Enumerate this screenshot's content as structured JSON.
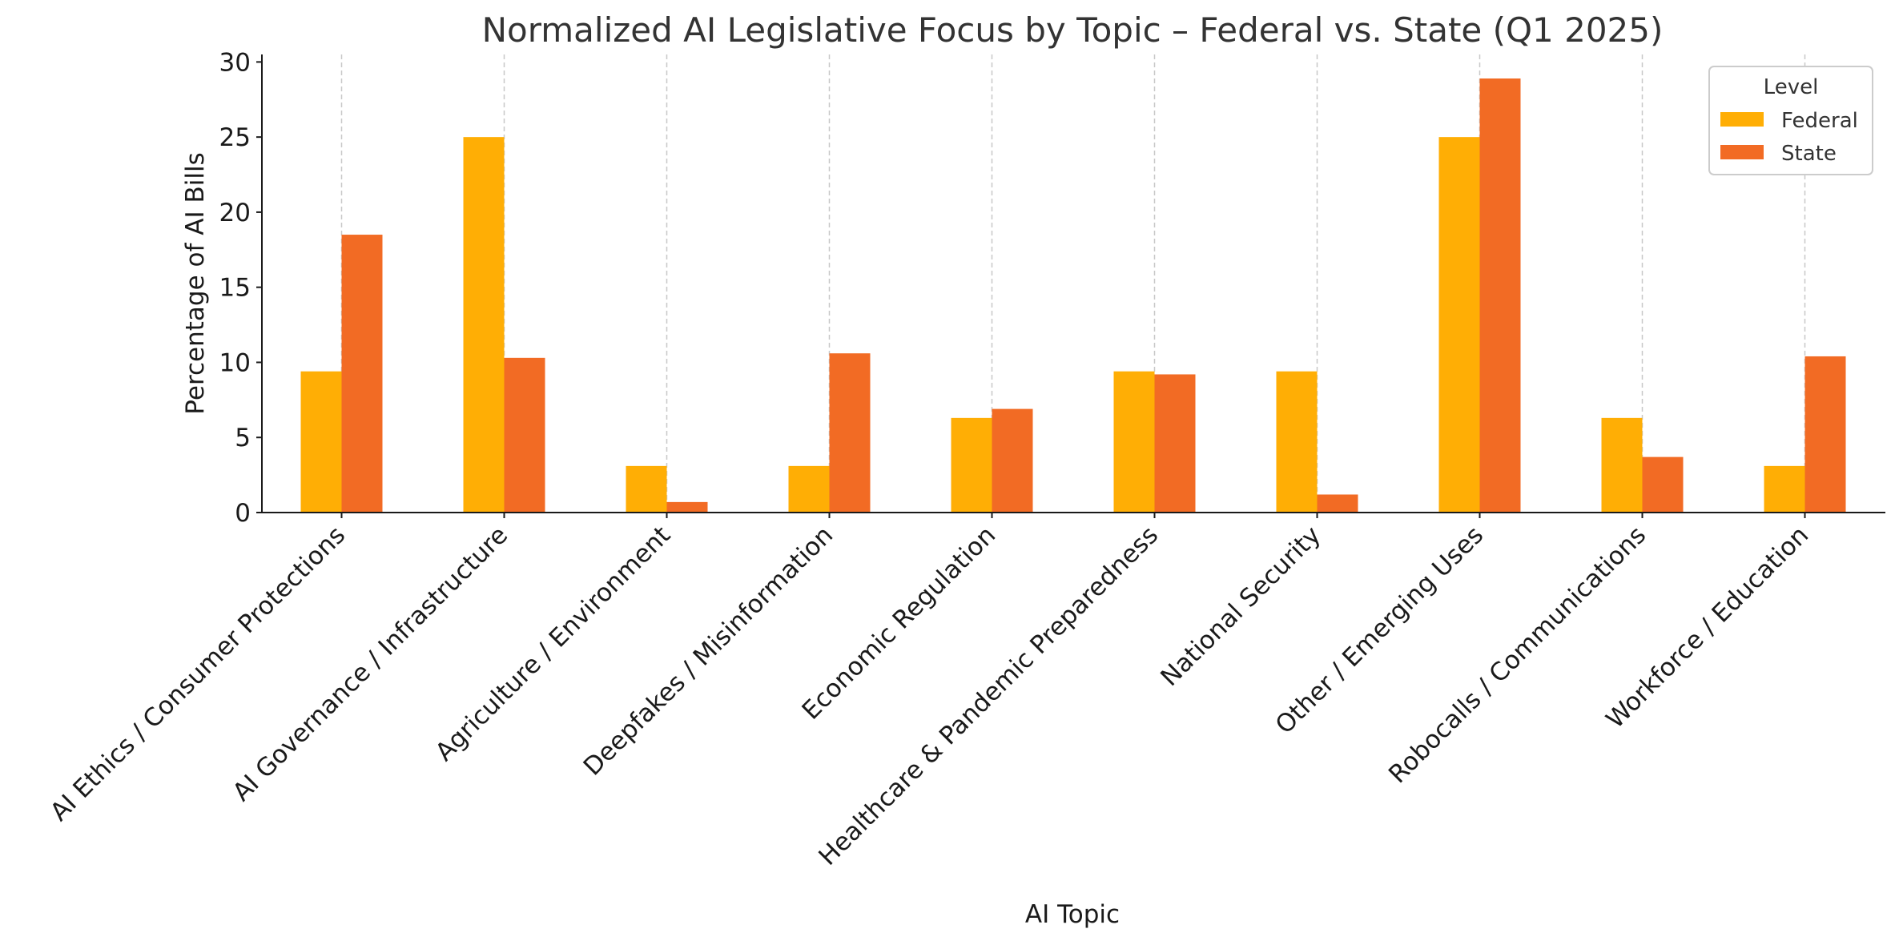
{
  "chart_data": {
    "type": "bar",
    "title": "Normalized AI Legislative Focus by Topic – Federal vs. State (Q1 2025)",
    "xlabel": "AI Topic",
    "ylabel": "Percentage of AI Bills",
    "ylim": [
      0,
      30.5
    ],
    "yticks": [
      0,
      5,
      10,
      15,
      20,
      25,
      30
    ],
    "grid": "vertical dashed",
    "legend": {
      "title": "Level",
      "position": "top-right"
    },
    "categories": [
      "AI Ethics / Consumer Protections",
      "AI Governance / Infrastructure",
      "Agriculture / Environment",
      "Deepfakes / Misinformation",
      "Economic Regulation",
      "Healthcare & Pandemic Preparedness",
      "National Security",
      "Other / Emerging Uses",
      "Robocalls / Communications",
      "Workforce / Education"
    ],
    "series": [
      {
        "name": "Federal",
        "color": "#FFAE05",
        "values": [
          9.4,
          25.0,
          3.1,
          3.1,
          6.3,
          9.4,
          9.4,
          25.0,
          6.3,
          3.1
        ]
      },
      {
        "name": "State",
        "color": "#F26B24",
        "values": [
          18.5,
          10.3,
          0.7,
          10.6,
          6.9,
          9.2,
          1.2,
          28.9,
          3.7,
          10.4
        ]
      }
    ]
  }
}
